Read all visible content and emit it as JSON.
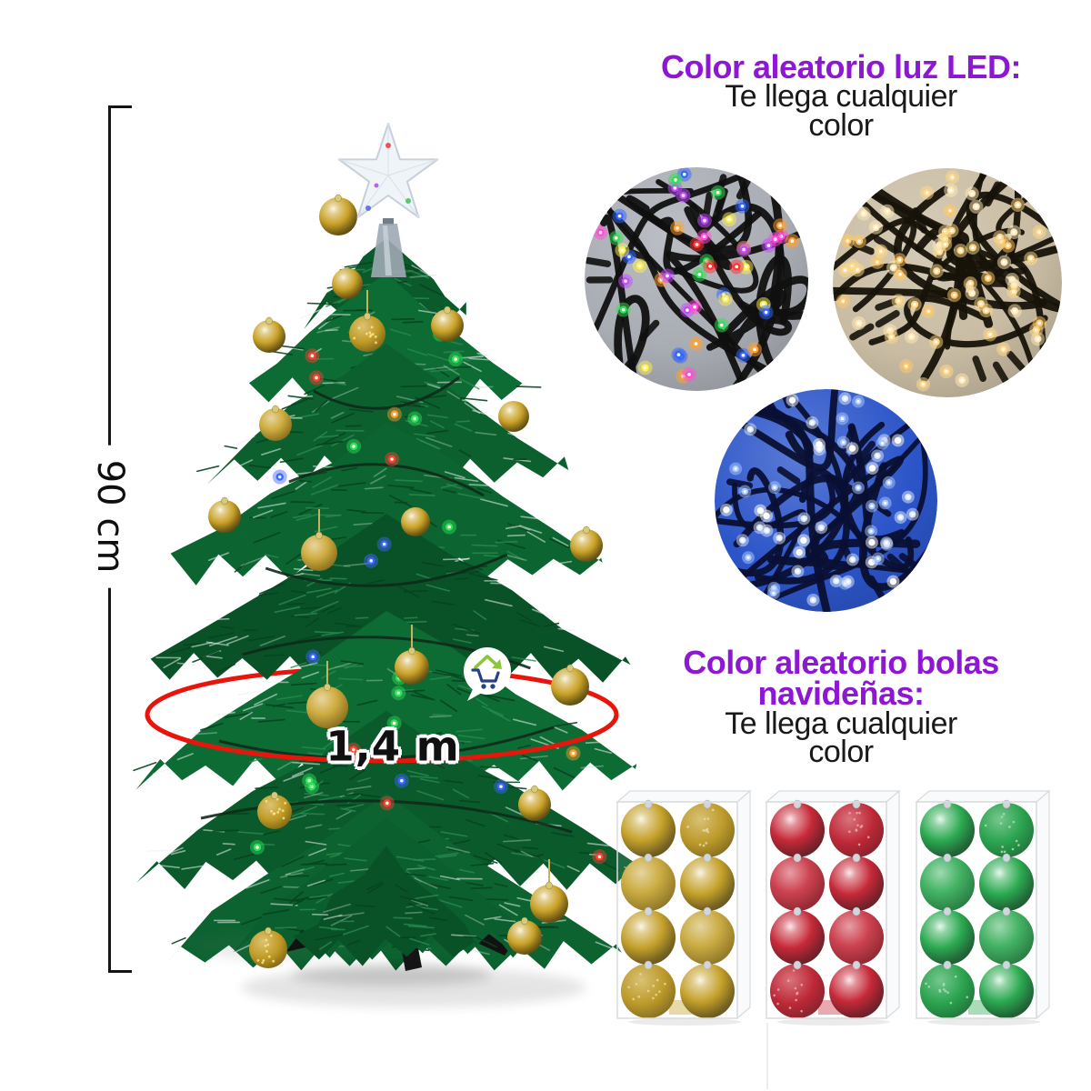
{
  "measurements": {
    "height_label": "90 cm",
    "diameter_label": "1,4 m"
  },
  "led_section": {
    "title": "Color aleatorio luz LED:",
    "subtitle_lines": [
      "Te llega cualquier",
      "color"
    ]
  },
  "balls_section": {
    "title_lines": [
      "Color aleatorio bolas",
      "navideñas:"
    ],
    "subtitle_lines": [
      "Te llega cualquier",
      "color"
    ]
  },
  "theme": {
    "accent_purple": "#8E17D3",
    "text_black": "#1A1A1A",
    "measure_red": "#E8150D",
    "measure_black": "#141414",
    "logo_green": "#8CC63F",
    "logo_blue": "#27408B",
    "tree_green_dark": "#0A5A2C",
    "tree_green_mid": "#0D6B34",
    "ball_gold": "#C9A227"
  },
  "led_circles": [
    {
      "name": "multicolor",
      "background": "#A8ACB3",
      "wire_color": "#101010",
      "light_colors": [
        "#ff3333",
        "#33dd55",
        "#3366ff",
        "#ffa133",
        "#c14bff",
        "#ff4bd8",
        "#ffee55"
      ]
    },
    {
      "name": "warm-white",
      "background": "#C9BCA3",
      "wire_color": "#17130a",
      "light_colors": [
        "#ffd98a",
        "#ffe9b8",
        "#ffc968"
      ]
    },
    {
      "name": "blue",
      "background": "#2C55C9",
      "wire_color": "#0a1033",
      "light_colors": [
        "#dce9ff",
        "#aac8ff",
        "#ffffff"
      ]
    }
  ],
  "ornament_boxes": [
    {
      "name": "gold",
      "base": "#BE9612"
    },
    {
      "name": "red",
      "base": "#C01122"
    },
    {
      "name": "green",
      "base": "#13A03D"
    }
  ]
}
